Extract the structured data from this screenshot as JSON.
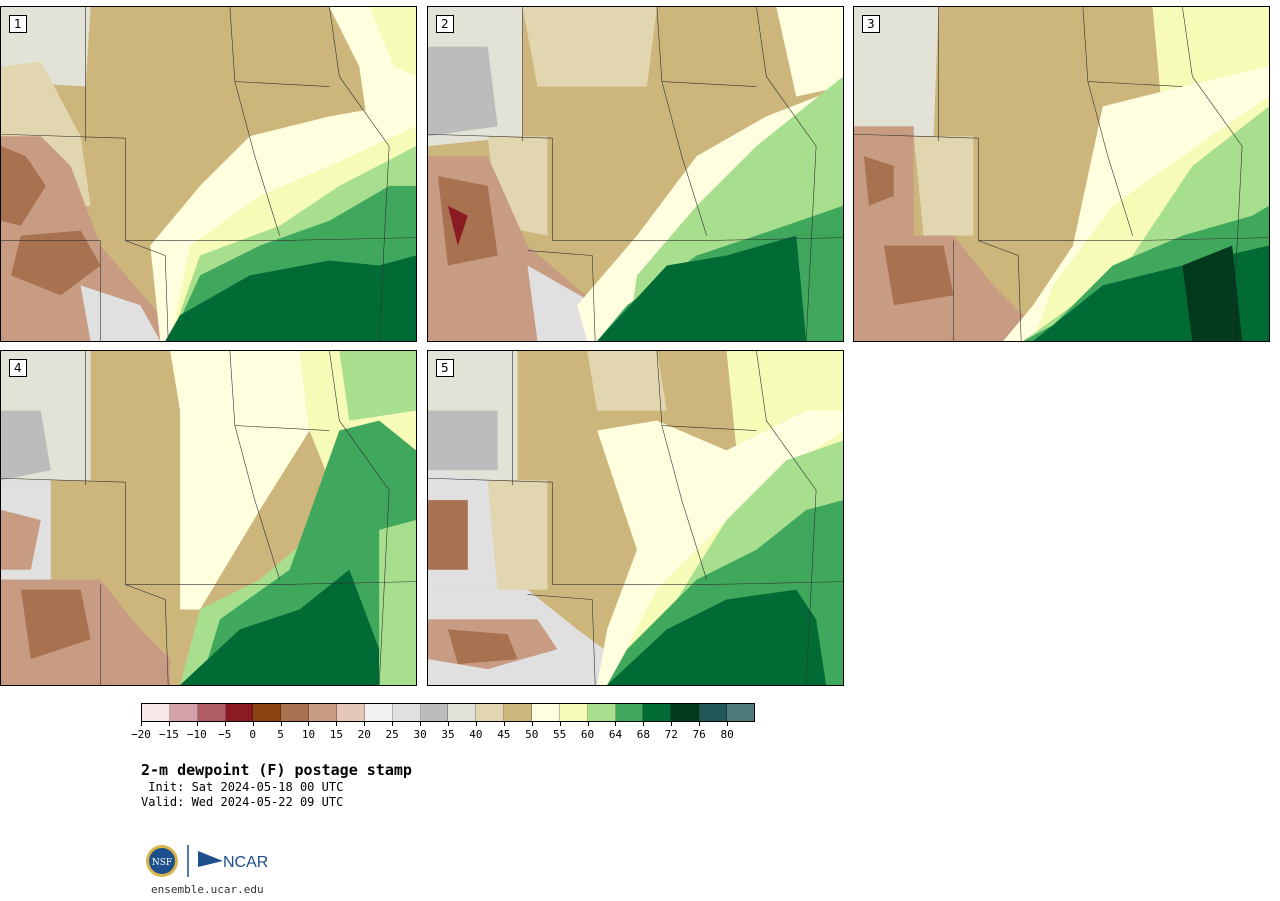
{
  "panels": [
    {
      "label": "1"
    },
    {
      "label": "2"
    },
    {
      "label": "3"
    },
    {
      "label": "4"
    },
    {
      "label": "5"
    }
  ],
  "colorbar": {
    "colors": [
      "#f6e8e8",
      "#d3a2a8",
      "#b05d66",
      "#8c1a22",
      "#8b4513",
      "#a87150",
      "#c79c83",
      "#e5c8b8",
      "#f2f2f2",
      "#e0e0e0",
      "#bcbcbc",
      "#e2e2d6",
      "#e2d6b0",
      "#cdb67c",
      "#ffffe0",
      "#f6fbb8",
      "#a8df8e",
      "#3fa85c",
      "#006b35",
      "#00391c",
      "#1e5755",
      "#4e7979"
    ],
    "tick_labels": [
      "−20",
      "−15",
      "−10",
      "−5",
      "0",
      "5",
      "10",
      "15",
      "20",
      "25",
      "30",
      "35",
      "40",
      "45",
      "50",
      "55",
      "60",
      "64",
      "68",
      "72",
      "76",
      "80"
    ]
  },
  "text": {
    "title": "2-m dewpoint (F) postage stamp",
    "init": " Init: Sat 2024-05-18 00 UTC",
    "valid": "Valid: Wed 2024-05-22 09 UTC",
    "logo_nsf": "NSF",
    "logo_ncar": "NCAR",
    "url": "ensemble.ucar.edu"
  }
}
